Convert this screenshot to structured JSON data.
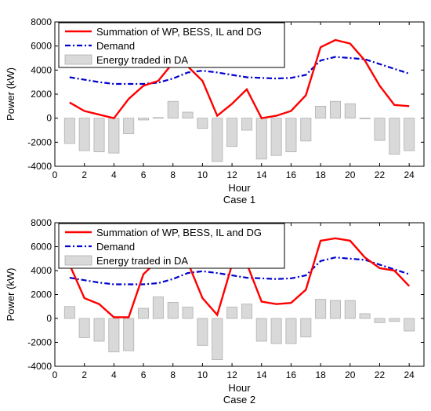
{
  "colors": {
    "supply": "#ff0000",
    "demand": "#0000cc",
    "bar_fill": "#d9d9d9",
    "bar_stroke": "#b0b0b0",
    "axis": "#000000"
  },
  "chart_data": [
    {
      "type": "bar",
      "caption": "Case 1",
      "xlabel": "Hour",
      "ylabel": "Power (kW)",
      "xlim": [
        0,
        25
      ],
      "ylim": [
        -4000,
        8000
      ],
      "xticks": [
        "0",
        "2",
        "4",
        "6",
        "8",
        "10",
        "12",
        "14",
        "16",
        "18",
        "20",
        "22",
        "24"
      ],
      "yticks": [
        "-4000",
        "-2000",
        "0",
        "2000",
        "4000",
        "6000",
        "8000"
      ],
      "grid": false,
      "legend_position": "top-left",
      "x": [
        1,
        2,
        3,
        4,
        5,
        6,
        7,
        8,
        9,
        10,
        11,
        12,
        13,
        14,
        15,
        16,
        17,
        18,
        19,
        20,
        21,
        22,
        23,
        24
      ],
      "series": [
        {
          "name": "Summation of WP, BESS, IL and DG",
          "style": "solid-line",
          "color": "#ff0000",
          "values": [
            1300,
            600,
            300,
            0,
            1600,
            2700,
            3100,
            4600,
            4300,
            3100,
            200,
            1200,
            2400,
            0,
            200,
            600,
            1900,
            5900,
            6500,
            6200,
            4800,
            2700,
            1100,
            1000
          ]
        },
        {
          "name": "Demand",
          "style": "dash-dot-line",
          "color": "#0000cc",
          "values": [
            3400,
            3200,
            3000,
            2850,
            2850,
            2850,
            2950,
            3300,
            3800,
            3950,
            3800,
            3600,
            3400,
            3350,
            3300,
            3350,
            3600,
            4800,
            5100,
            5000,
            4900,
            4500,
            4100,
            3700
          ]
        },
        {
          "name": "Energy traded in DA",
          "style": "bar",
          "color": "#d9d9d9",
          "values": [
            -2100,
            -2700,
            -2800,
            -2900,
            -1300,
            -150,
            50,
            1400,
            500,
            -850,
            -3600,
            -2350,
            -1000,
            -3400,
            -3100,
            -2800,
            -1900,
            1000,
            1400,
            1200,
            -50,
            -1850,
            -3000,
            -2700
          ]
        }
      ]
    },
    {
      "type": "bar",
      "caption": "Case 2",
      "xlabel": "Hour",
      "ylabel": "Power (kW)",
      "xlim": [
        0,
        25
      ],
      "ylim": [
        -4000,
        8000
      ],
      "xticks": [
        "0",
        "2",
        "4",
        "6",
        "8",
        "10",
        "12",
        "14",
        "16",
        "18",
        "20",
        "22",
        "24"
      ],
      "yticks": [
        "-4000",
        "-2000",
        "0",
        "2000",
        "4000",
        "6000",
        "8000"
      ],
      "grid": false,
      "legend_position": "top-left",
      "x": [
        1,
        2,
        3,
        4,
        5,
        6,
        7,
        8,
        9,
        10,
        11,
        12,
        13,
        14,
        15,
        16,
        17,
        18,
        19,
        20,
        21,
        22,
        23,
        24
      ],
      "series": [
        {
          "name": "Summation of WP, BESS, IL and DG",
          "style": "solid-line",
          "color": "#ff0000",
          "values": [
            4500,
            1700,
            1200,
            100,
            100,
            3700,
            4900,
            4700,
            4700,
            1700,
            300,
            4500,
            4600,
            1400,
            1200,
            1300,
            2400,
            6500,
            6700,
            6500,
            5100,
            4200,
            4000,
            2700
          ]
        },
        {
          "name": "Demand",
          "style": "dash-dot-line",
          "color": "#0000cc",
          "values": [
            3400,
            3200,
            3000,
            2850,
            2850,
            2850,
            2950,
            3300,
            3800,
            3950,
            3800,
            3600,
            3400,
            3350,
            3300,
            3350,
            3600,
            4800,
            5100,
            5000,
            4900,
            4500,
            4100,
            3700
          ]
        },
        {
          "name": "Energy traded in DA",
          "style": "bar",
          "color": "#d9d9d9",
          "values": [
            1000,
            -1600,
            -1900,
            -2800,
            -2700,
            850,
            1800,
            1350,
            950,
            -2250,
            -3450,
            950,
            1200,
            -1900,
            -2100,
            -2100,
            -1550,
            1600,
            1500,
            1500,
            400,
            -350,
            -250,
            -1050
          ]
        }
      ]
    }
  ]
}
